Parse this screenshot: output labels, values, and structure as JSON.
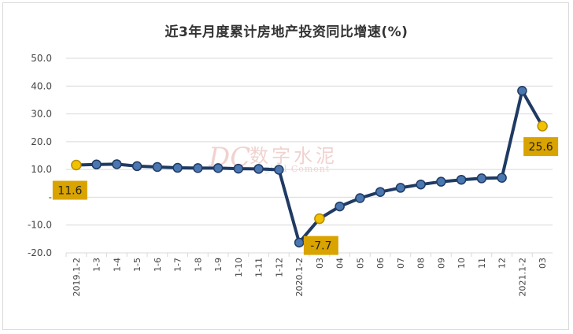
{
  "title": "近3年月度累计房地产投资同比增速(%)",
  "watermark": {
    "cn": "数字水泥",
    "en": "Digital Cement",
    "logo": "DC"
  },
  "colors": {
    "line": "#1f3a63",
    "marker": "#4a77b0",
    "highlight": "#f2c200",
    "label_bg": "#d9a300",
    "grid": "#d9d9d9"
  },
  "chart_data": {
    "type": "line",
    "title": "近3年月度累计房地产投资同比增速(%)",
    "xlabel": "",
    "ylabel": "",
    "ylim": [
      -20,
      50
    ],
    "ytick_labels": [
      "50.0",
      "40.0",
      "30.0",
      "20.0",
      "10.0",
      "-",
      "-10.0",
      "-20.0"
    ],
    "grid": true,
    "categories": [
      "2019.1-2",
      "1-3",
      "1-4",
      "1-5",
      "1-6",
      "1-7",
      "1-8",
      "1-9",
      "1-10",
      "1-11",
      "1-12",
      "2020.1-2",
      "03",
      "04",
      "05",
      "06",
      "07",
      "08",
      "09",
      "10",
      "11",
      "12",
      "2021.1-2",
      "03"
    ],
    "series": [
      {
        "values": [
          11.6,
          11.8,
          11.9,
          11.2,
          10.9,
          10.6,
          10.5,
          10.5,
          10.3,
          10.2,
          9.9,
          -16.3,
          -7.7,
          -3.3,
          -0.3,
          1.9,
          3.4,
          4.6,
          5.6,
          6.3,
          6.8,
          7.0,
          38.3,
          25.6
        ]
      }
    ],
    "data_labels": [
      {
        "index": 0,
        "text": "11.6"
      },
      {
        "index": 12,
        "text": "-7.7"
      },
      {
        "index": 23,
        "text": "25.6"
      }
    ]
  }
}
